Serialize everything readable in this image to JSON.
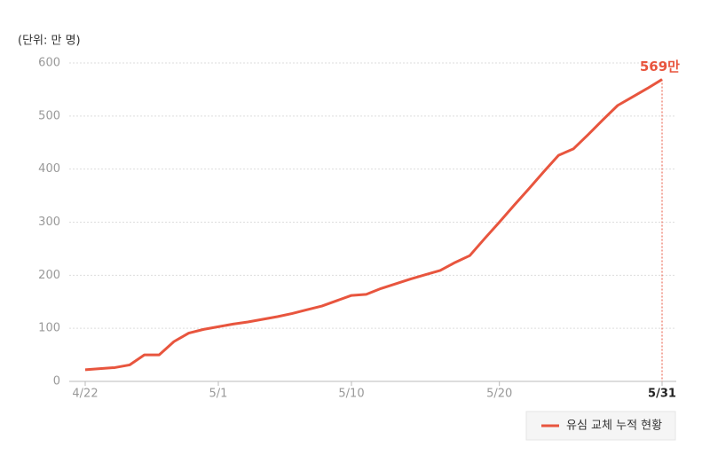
{
  "chart_data": {
    "type": "line",
    "y_label": "(단위: 만 명)",
    "categories": [
      "4/22",
      null,
      null,
      null,
      null,
      null,
      null,
      null,
      null,
      "5/1",
      null,
      null,
      null,
      null,
      null,
      null,
      null,
      null,
      "5/10",
      null,
      null,
      null,
      null,
      null,
      null,
      null,
      null,
      null,
      "5/20",
      null,
      null,
      null,
      null,
      null,
      null,
      null,
      null,
      null,
      null,
      "5/31"
    ],
    "series": [
      {
        "name": "유심 교체 누적 현황",
        "color": "#e8553e",
        "values": [
          22,
          24,
          26,
          31,
          50,
          50,
          75,
          91,
          98,
          103,
          108,
          112,
          117,
          122,
          128,
          135,
          142,
          152,
          162,
          164,
          175,
          184,
          193,
          201,
          209,
          224,
          237,
          269,
          300,
          332,
          363,
          395,
          426,
          438,
          465,
          493,
          520,
          536,
          552,
          569
        ],
        "value_labels": [
          null,
          null,
          null,
          null,
          null,
          null,
          null,
          null,
          null,
          null,
          null,
          null,
          null,
          null,
          null,
          null,
          null,
          null,
          null,
          null,
          null,
          null,
          null,
          null,
          null,
          null,
          null,
          null,
          null,
          null,
          null,
          null,
          null,
          null,
          null,
          null,
          null,
          null,
          null,
          "569만"
        ]
      }
    ],
    "ylim": [
      0,
      600
    ],
    "yticks": [
      0,
      100,
      200,
      300,
      400,
      500,
      600
    ],
    "grid": true,
    "legend": "bottom-right"
  }
}
